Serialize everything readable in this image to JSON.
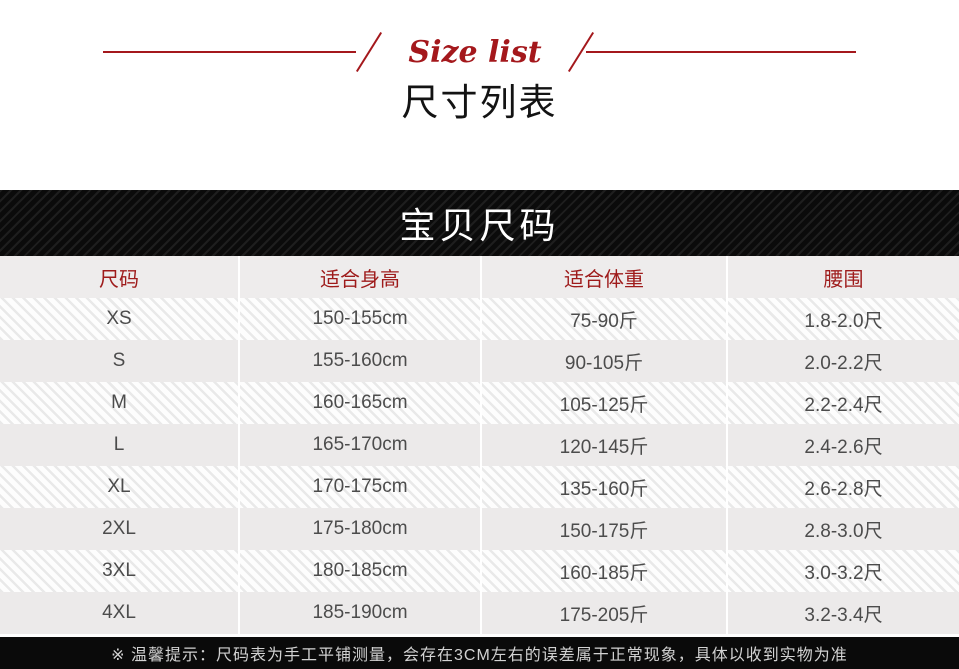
{
  "page": {
    "title_en": "Size list",
    "title_zh": "尺寸列表",
    "banner_title": "宝贝尺码",
    "notice": "※ 温馨提示：尺码表为手工平铺测量，会存在3CM左右的误差属于正常现象，具体以收到实物为准"
  },
  "colors": {
    "accent_red": "#a4181c",
    "header_text_red": "#9e1b1b",
    "banner_bg": "#0b0b0b",
    "header_row_bg": "#eeecec",
    "solid_row_bg": "#eceaea",
    "cell_text": "#4c4c4c",
    "notice_text": "#d2d2d2"
  },
  "table": {
    "headers": [
      "尺码",
      "适合身高",
      "适合体重",
      "腰围"
    ],
    "rows": [
      {
        "size": "XS",
        "height": "150-155cm",
        "weight": "75-90斤",
        "waist": "1.8-2.0尺"
      },
      {
        "size": "S",
        "height": "155-160cm",
        "weight": "90-105斤",
        "waist": "2.0-2.2尺"
      },
      {
        "size": "M",
        "height": "160-165cm",
        "weight": "105-125斤",
        "waist": "2.2-2.4尺"
      },
      {
        "size": "L",
        "height": "165-170cm",
        "weight": "120-145斤",
        "waist": "2.4-2.6尺"
      },
      {
        "size": "XL",
        "height": "170-175cm",
        "weight": "135-160斤",
        "waist": "2.6-2.8尺"
      },
      {
        "size": "2XL",
        "height": "175-180cm",
        "weight": "150-175斤",
        "waist": "2.8-3.0尺"
      },
      {
        "size": "3XL",
        "height": "180-185cm",
        "weight": "160-185斤",
        "waist": "3.0-3.2尺"
      },
      {
        "size": "4XL",
        "height": "185-190cm",
        "weight": "175-205斤",
        "waist": "3.2-3.4尺"
      }
    ]
  }
}
